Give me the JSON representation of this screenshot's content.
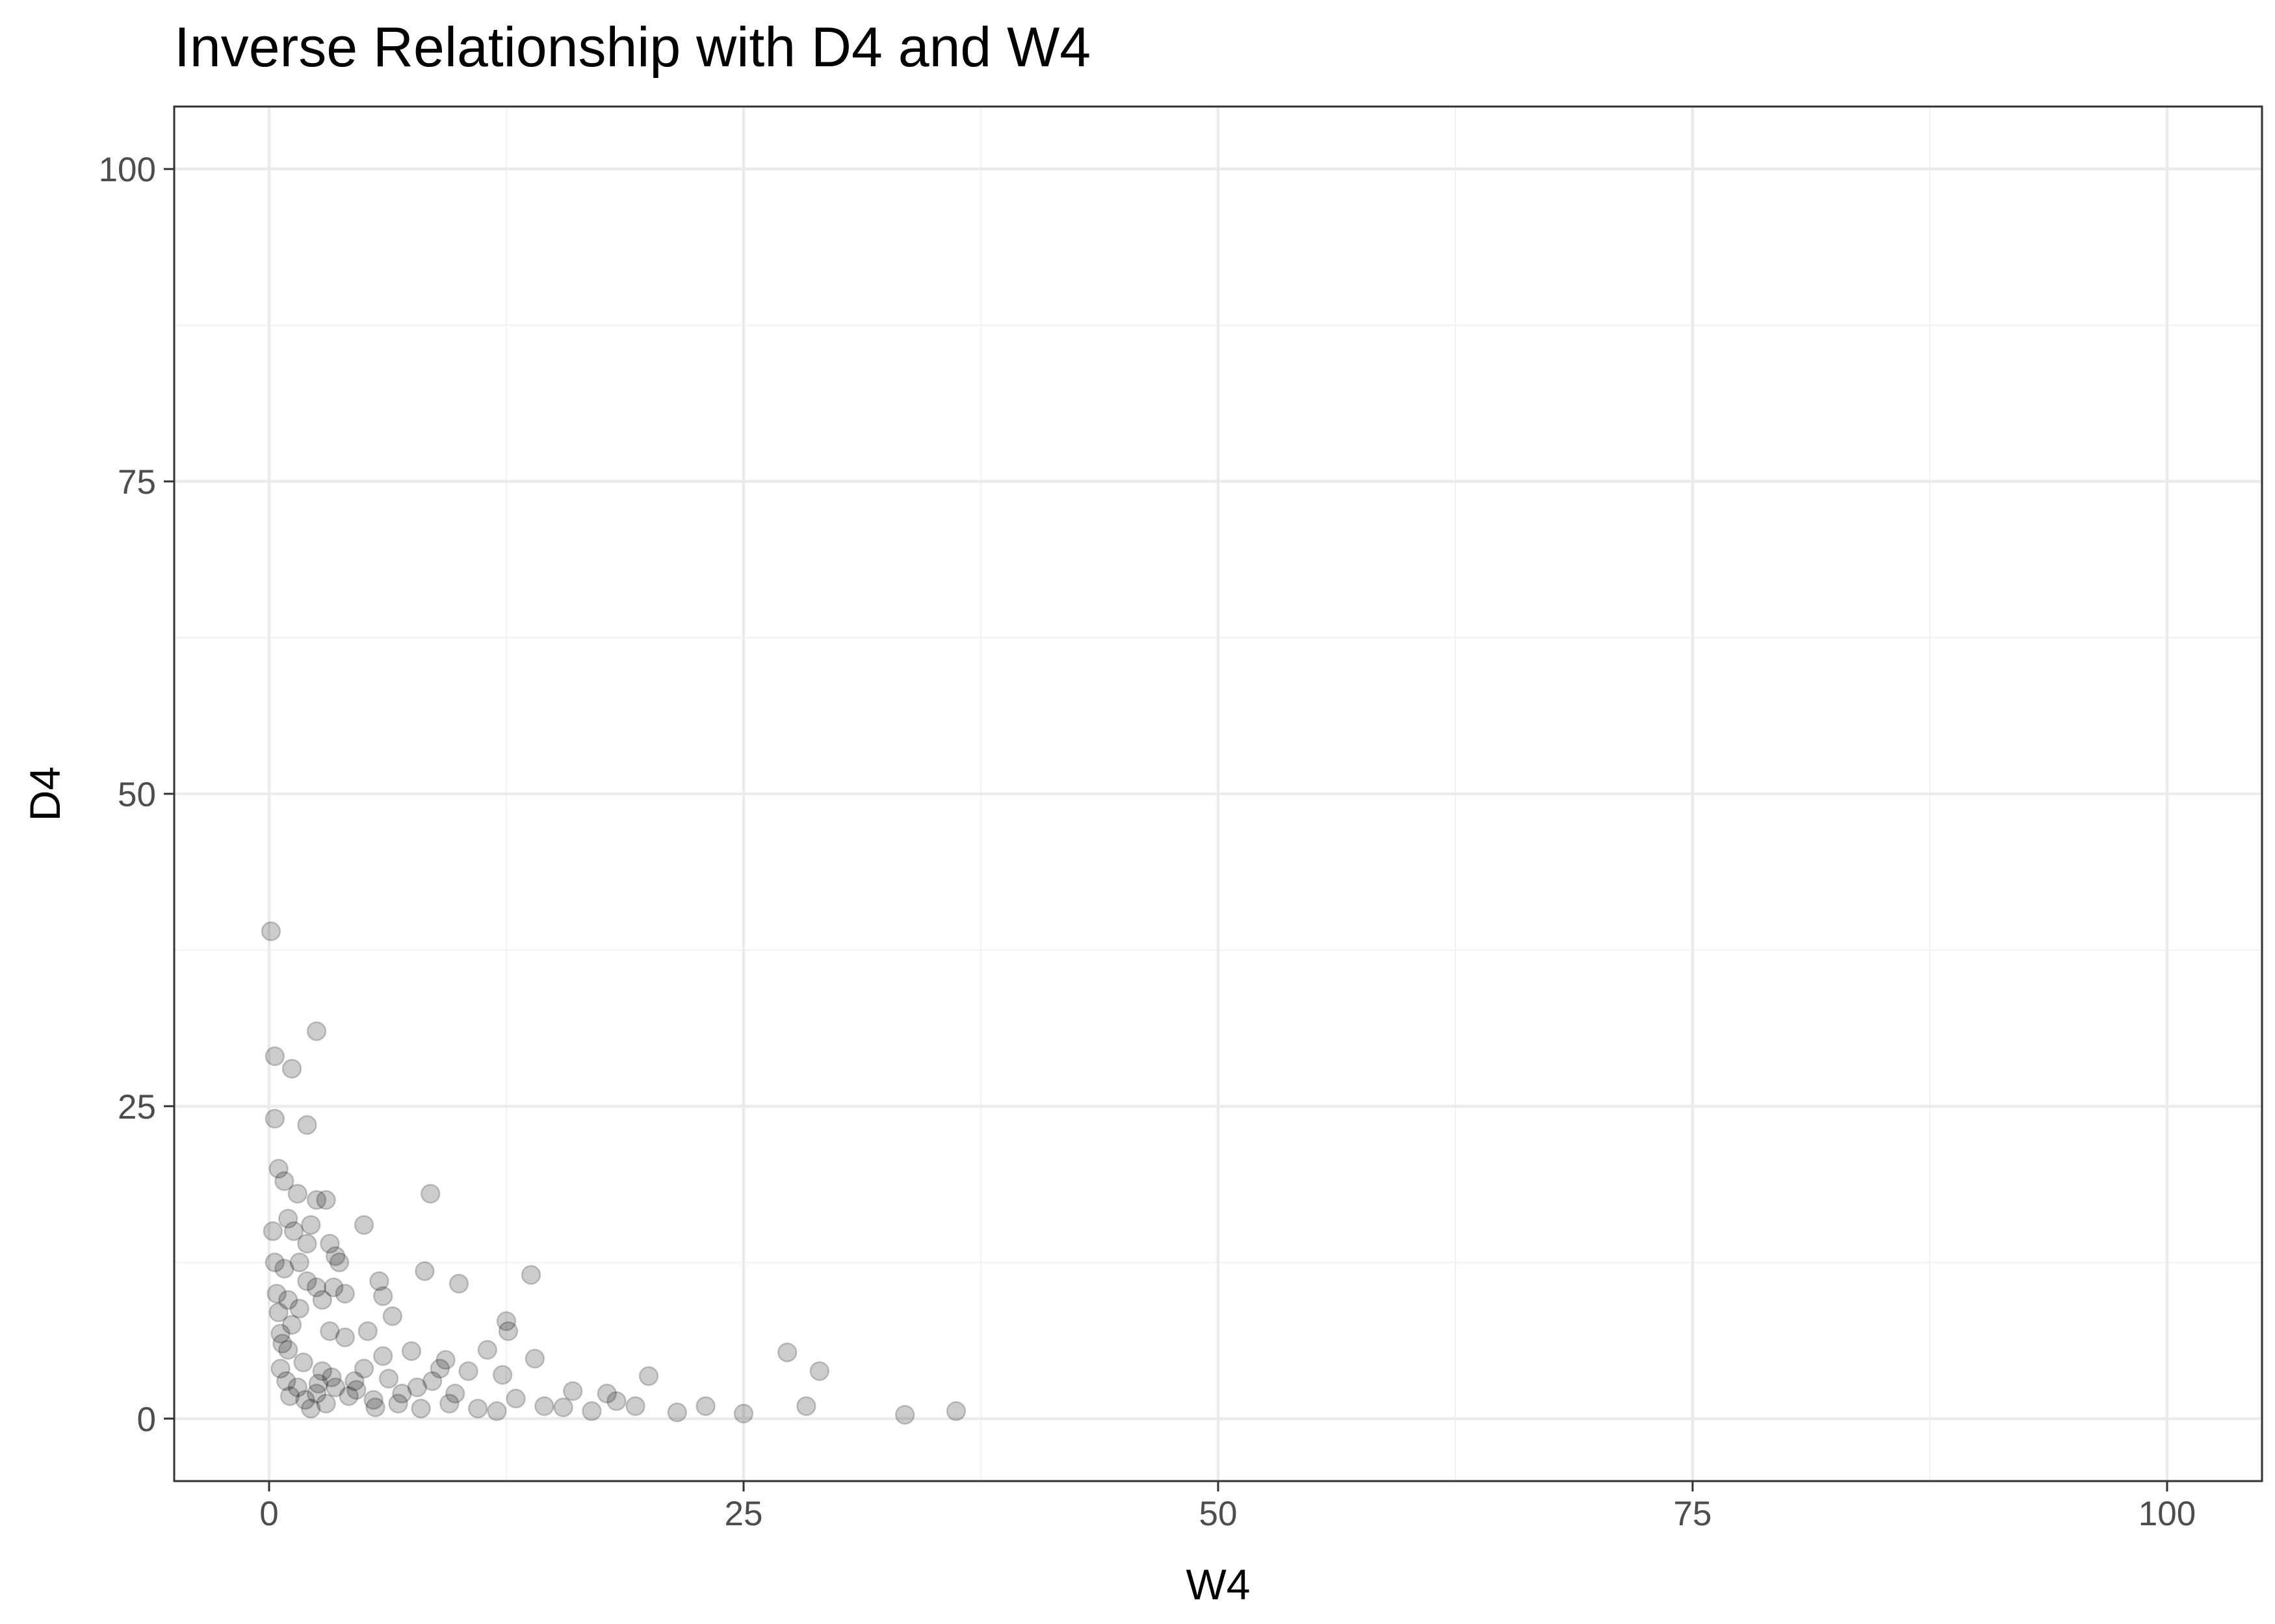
{
  "chart_data": {
    "type": "scatter",
    "title": "Inverse Relationship with D4 and W4",
    "xlabel": "W4",
    "ylabel": "D4",
    "xlim": [
      -5,
      105
    ],
    "ylim": [
      -5,
      105
    ],
    "x_ticks": [
      0,
      25,
      50,
      75,
      100
    ],
    "y_ticks": [
      0,
      25,
      50,
      75,
      100
    ],
    "x_tick_labels": [
      "0",
      "25",
      "50",
      "75",
      "100"
    ],
    "y_tick_labels": [
      "0",
      "25",
      "50",
      "75",
      "100"
    ],
    "grid": true,
    "legend": "none",
    "point_color": "#000000",
    "point_opacity": 0.2,
    "points": [
      [
        2.5,
        31.0
      ],
      [
        1.2,
        28.0
      ],
      [
        0.3,
        29.0
      ],
      [
        0.1,
        39.0
      ],
      [
        2.0,
        23.5
      ],
      [
        0.3,
        24.0
      ],
      [
        8.5,
        18.0
      ],
      [
        0.5,
        20.0
      ],
      [
        0.8,
        19.0
      ],
      [
        1.5,
        18.0
      ],
      [
        2.5,
        17.5
      ],
      [
        3.0,
        17.5
      ],
      [
        5.0,
        15.5
      ],
      [
        1.0,
        16.0
      ],
      [
        2.2,
        15.5
      ],
      [
        1.3,
        15.0
      ],
      [
        2.0,
        14.0
      ],
      [
        3.2,
        14.0
      ],
      [
        3.5,
        13.0
      ],
      [
        3.7,
        12.5
      ],
      [
        1.6,
        12.5
      ],
      [
        0.8,
        12.0
      ],
      [
        8.2,
        11.8
      ],
      [
        13.8,
        11.5
      ],
      [
        5.8,
        11.0
      ],
      [
        10.0,
        10.8
      ],
      [
        2.0,
        11.0
      ],
      [
        2.5,
        10.5
      ],
      [
        3.4,
        10.5
      ],
      [
        4.0,
        10.0
      ],
      [
        6.0,
        9.8
      ],
      [
        2.8,
        9.5
      ],
      [
        1.0,
        9.5
      ],
      [
        1.6,
        8.8
      ],
      [
        6.5,
        8.2
      ],
      [
        12.5,
        7.8
      ],
      [
        12.6,
        7.0
      ],
      [
        5.2,
        7.0
      ],
      [
        3.2,
        7.0
      ],
      [
        4.0,
        6.5
      ],
      [
        11.5,
        5.5
      ],
      [
        27.3,
        5.3
      ],
      [
        14.0,
        4.8
      ],
      [
        9.3,
        4.7
      ],
      [
        7.5,
        5.4
      ],
      [
        6.0,
        5.0
      ],
      [
        9.0,
        4.0
      ],
      [
        29.0,
        3.8
      ],
      [
        12.3,
        3.5
      ],
      [
        20.0,
        3.4
      ],
      [
        10.5,
        3.8
      ],
      [
        4.5,
        3.0
      ],
      [
        3.5,
        2.5
      ],
      [
        2.5,
        2.0
      ],
      [
        7.8,
        2.5
      ],
      [
        9.8,
        2.0
      ],
      [
        13.0,
        1.6
      ],
      [
        16.0,
        2.2
      ],
      [
        17.8,
        2.0
      ],
      [
        18.3,
        1.4
      ],
      [
        15.5,
        0.9
      ],
      [
        19.3,
        1.0
      ],
      [
        21.5,
        0.5
      ],
      [
        23.0,
        1.0
      ],
      [
        25.0,
        0.4
      ],
      [
        28.3,
        1.0
      ],
      [
        33.5,
        0.3
      ],
      [
        36.2,
        0.6
      ],
      [
        5.5,
        1.5
      ],
      [
        6.8,
        1.2
      ],
      [
        8.0,
        0.8
      ],
      [
        11.0,
        0.8
      ],
      [
        14.5,
        1.0
      ],
      [
        17.0,
        0.6
      ],
      [
        1.0,
        5.5
      ],
      [
        1.8,
        4.5
      ],
      [
        2.8,
        3.8
      ],
      [
        0.6,
        6.8
      ],
      [
        1.2,
        7.5
      ],
      [
        0.9,
        3.0
      ],
      [
        1.5,
        2.5
      ],
      [
        4.2,
        1.8
      ],
      [
        3.0,
        1.2
      ],
      [
        2.2,
        0.8
      ],
      [
        5.0,
        4.0
      ],
      [
        6.3,
        3.2
      ],
      [
        7.0,
        2.0
      ],
      [
        8.6,
        3.0
      ],
      [
        9.5,
        1.2
      ],
      [
        12.0,
        0.6
      ],
      [
        0.4,
        10.0
      ],
      [
        0.5,
        8.5
      ],
      [
        0.7,
        6.0
      ],
      [
        0.3,
        12.5
      ],
      [
        0.2,
        15.0
      ],
      [
        0.6,
        4.0
      ],
      [
        1.1,
        1.8
      ],
      [
        1.9,
        1.5
      ],
      [
        2.6,
        2.8
      ],
      [
        3.3,
        3.3
      ],
      [
        4.6,
        2.3
      ],
      [
        5.6,
        0.9
      ]
    ]
  }
}
